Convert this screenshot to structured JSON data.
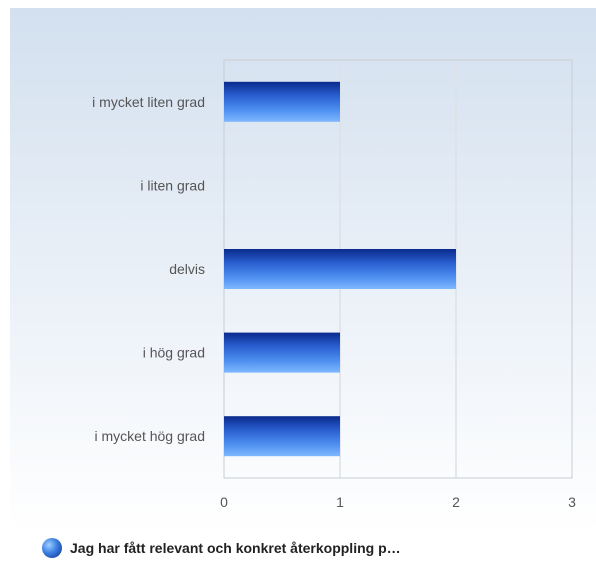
{
  "chart_data": {
    "type": "bar",
    "orientation": "horizontal",
    "categories": [
      "i mycket liten grad",
      "i liten grad",
      "delvis",
      "i hög grad",
      "i mycket hög grad"
    ],
    "series": [
      {
        "name": "Jag har fått relevant och konkret återkoppling p…",
        "values": [
          1,
          0,
          2,
          1,
          1
        ]
      }
    ],
    "xticks": [
      "0",
      "1",
      "2",
      "3"
    ],
    "xlim": [
      0,
      3
    ],
    "grid": true,
    "legend_position": "bottom-left"
  }
}
